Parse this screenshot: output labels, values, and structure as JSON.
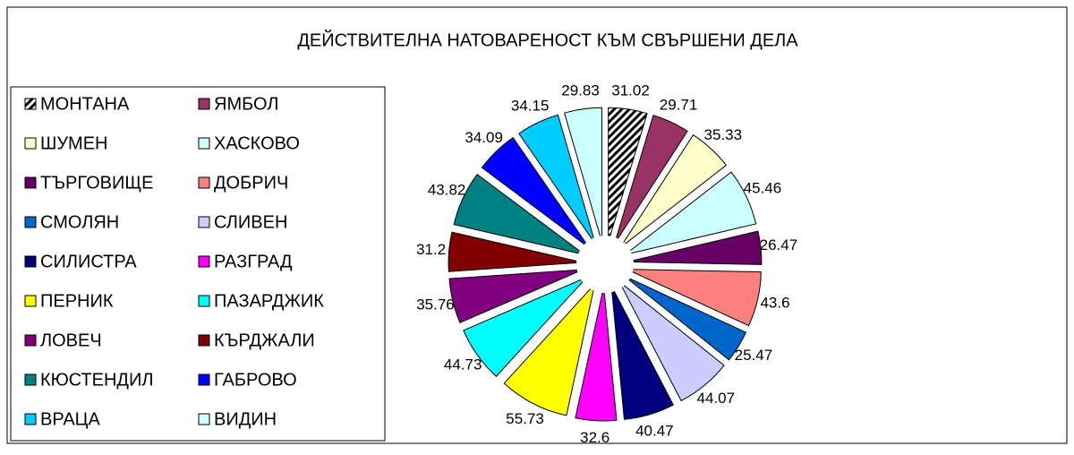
{
  "chart_data": {
    "type": "pie",
    "title": "ДЕЙСТВИТЕЛНА НАТОВАРЕНОСТ КЪМ СВЪРШЕНИ ДЕЛА",
    "categories": [
      "МОНТАНА",
      "ЯМБОЛ",
      "ШУМЕН",
      "ХАСКОВО",
      "ТЪРГОВИЩЕ",
      "ДОБРИЧ",
      "СМОЛЯН",
      "СЛИВЕН",
      "СИЛИСТРА",
      "РАЗГРАД",
      "ПЕРНИК",
      "ПАЗАРДЖИК",
      "ЛОВЕЧ",
      "КЪРДЖАЛИ",
      "КЮСТЕНДИЛ",
      "ГАБРОВО",
      "ВРАЦА",
      "ВИДИН"
    ],
    "values": [
      31.02,
      29.71,
      35.33,
      45.46,
      26.47,
      43.6,
      25.47,
      44.07,
      40.47,
      32.6,
      55.73,
      44.73,
      35.76,
      31.2,
      43.82,
      34.09,
      34.15,
      29.83
    ],
    "colors": [
      "url(#hatch)",
      "#993366",
      "#ffffcc",
      "#ccffff",
      "#660066",
      "#ff8080",
      "#0066cc",
      "#ccccff",
      "#000080",
      "#ff00ff",
      "#ffff00",
      "#00ffff",
      "#800080",
      "#800000",
      "#008080",
      "#0000ff",
      "#00ccff",
      "#ccffff"
    ],
    "legend": "left"
  }
}
